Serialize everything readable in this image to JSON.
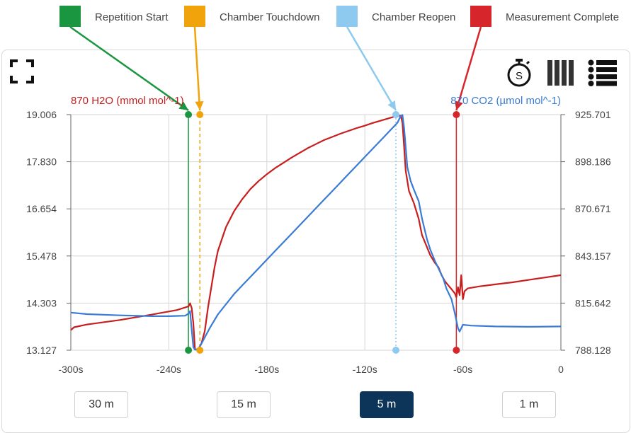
{
  "chart_data": {
    "type": "line",
    "x_unit": "s",
    "xlim": [
      -300,
      0
    ],
    "x_ticks": [
      -300,
      -240,
      -180,
      -120,
      -60,
      0
    ],
    "x_tick_labels": [
      "-300s",
      "-240s",
      "-180s",
      "-120s",
      "-60s",
      "0"
    ],
    "left_axis": {
      "label": "870 H2O (mmol mol^-1)",
      "ylim": [
        13.127,
        19.006
      ],
      "tick_labels": [
        "19.006",
        "17.830",
        "16.654",
        "15.478",
        "14.303",
        "13.127"
      ]
    },
    "right_axis": {
      "label": "870 CO2 (µmol mol^-1)",
      "ylim": [
        788.128,
        925.701
      ],
      "tick_labels": [
        "925.701",
        "898.186",
        "870.671",
        "843.157",
        "815.642",
        "788.128"
      ]
    },
    "grid": true,
    "series": [
      {
        "name": "870 H2O (mmol mol^-1)",
        "axis": "left",
        "color": "#c81e1e",
        "points": [
          [
            -300,
            13.63
          ],
          [
            -298,
            13.7
          ],
          [
            -290,
            13.77
          ],
          [
            -270,
            13.88
          ],
          [
            -250,
            14.02
          ],
          [
            -235,
            14.13
          ],
          [
            -228,
            14.22
          ],
          [
            -227,
            14.3
          ],
          [
            -226,
            14.18
          ],
          [
            -225,
            13.8
          ],
          [
            -224,
            13.15
          ],
          [
            -222,
            13.15
          ],
          [
            -220,
            13.3
          ],
          [
            -218,
            13.6
          ],
          [
            -216,
            14.2
          ],
          [
            -214,
            14.7
          ],
          [
            -212,
            15.2
          ],
          [
            -210,
            15.6
          ],
          [
            -205,
            16.2
          ],
          [
            -200,
            16.6
          ],
          [
            -195,
            16.9
          ],
          [
            -190,
            17.15
          ],
          [
            -185,
            17.35
          ],
          [
            -180,
            17.52
          ],
          [
            -175,
            17.67
          ],
          [
            -170,
            17.8
          ],
          [
            -165,
            17.93
          ],
          [
            -160,
            18.05
          ],
          [
            -155,
            18.17
          ],
          [
            -150,
            18.27
          ],
          [
            -145,
            18.37
          ],
          [
            -140,
            18.45
          ],
          [
            -135,
            18.53
          ],
          [
            -130,
            18.6
          ],
          [
            -125,
            18.67
          ],
          [
            -120,
            18.73
          ],
          [
            -115,
            18.8
          ],
          [
            -110,
            18.86
          ],
          [
            -105,
            18.92
          ],
          [
            -100,
            18.98
          ],
          [
            -98,
            18.98
          ],
          [
            -97,
            18.8
          ],
          [
            -96,
            18.2
          ],
          [
            -95,
            17.6
          ],
          [
            -93,
            17.1
          ],
          [
            -90,
            16.8
          ],
          [
            -87,
            16.4
          ],
          [
            -85,
            16.0
          ],
          [
            -82,
            15.7
          ],
          [
            -80,
            15.5
          ],
          [
            -77,
            15.3
          ],
          [
            -75,
            15.2
          ],
          [
            -73,
            15.0
          ],
          [
            -71,
            14.85
          ],
          [
            -69,
            14.75
          ],
          [
            -67,
            14.65
          ],
          [
            -65,
            14.55
          ],
          [
            -64,
            14.45
          ],
          [
            -63,
            14.7
          ],
          [
            -62,
            14.5
          ],
          [
            -61,
            15.0
          ],
          [
            -60,
            14.4
          ],
          [
            -59,
            14.6
          ],
          [
            -57,
            14.67
          ],
          [
            -50,
            14.72
          ],
          [
            -40,
            14.77
          ],
          [
            -30,
            14.82
          ],
          [
            -20,
            14.88
          ],
          [
            -10,
            14.94
          ],
          [
            0,
            15.0
          ]
        ]
      },
      {
        "name": "870 CO2 (µmol mol^-1)",
        "axis": "right",
        "color": "#3a7bd5",
        "points": [
          [
            -300,
            810.1
          ],
          [
            -290,
            809.2
          ],
          [
            -270,
            808.5
          ],
          [
            -250,
            808.0
          ],
          [
            -240,
            808.0
          ],
          [
            -230,
            808.3
          ],
          [
            -228,
            809.5
          ],
          [
            -227,
            811.0
          ],
          [
            -226,
            800.0
          ],
          [
            -225,
            790.0
          ],
          [
            -224,
            788.4
          ],
          [
            -222,
            788.5
          ],
          [
            -220,
            792.0
          ],
          [
            -215,
            801.0
          ],
          [
            -210,
            809.0
          ],
          [
            -205,
            815.0
          ],
          [
            -200,
            821.0
          ],
          [
            -195,
            826.0
          ],
          [
            -190,
            831.0
          ],
          [
            -185,
            836.0
          ],
          [
            -180,
            841.0
          ],
          [
            -175,
            846.0
          ],
          [
            -170,
            851.0
          ],
          [
            -165,
            856.0
          ],
          [
            -160,
            861.0
          ],
          [
            -155,
            866.0
          ],
          [
            -150,
            871.0
          ],
          [
            -145,
            876.0
          ],
          [
            -140,
            881.0
          ],
          [
            -135,
            886.0
          ],
          [
            -130,
            891.0
          ],
          [
            -125,
            896.0
          ],
          [
            -120,
            901.0
          ],
          [
            -115,
            906.0
          ],
          [
            -110,
            911.0
          ],
          [
            -105,
            916.0
          ],
          [
            -100,
            921.0
          ],
          [
            -98,
            925.0
          ],
          [
            -97,
            925.5
          ],
          [
            -96,
            918.0
          ],
          [
            -94,
            895.0
          ],
          [
            -92,
            887.0
          ],
          [
            -90,
            882.0
          ],
          [
            -87,
            875.0
          ],
          [
            -85,
            865.0
          ],
          [
            -82,
            853.0
          ],
          [
            -80,
            847.0
          ],
          [
            -77,
            840.0
          ],
          [
            -75,
            836.0
          ],
          [
            -72,
            830.0
          ],
          [
            -70,
            824.0
          ],
          [
            -67,
            818.0
          ],
          [
            -65,
            810.0
          ],
          [
            -63,
            801.0
          ],
          [
            -62,
            799.0
          ],
          [
            -60,
            803.0
          ],
          [
            -55,
            802.5
          ],
          [
            -40,
            802.0
          ],
          [
            -20,
            801.8
          ],
          [
            0,
            802.0
          ]
        ]
      }
    ],
    "events": [
      {
        "name": "Repetition Start",
        "x": -228,
        "color": "#1a9641",
        "line": "solid"
      },
      {
        "name": "Chamber Touchdown",
        "x": -221,
        "color": "#f0a30a",
        "line": "dashed"
      },
      {
        "name": "Chamber Reopen",
        "x": -101,
        "color": "#8ec9ef",
        "line": "dotted"
      },
      {
        "name": "Measurement Complete",
        "x": -64,
        "color": "#d7262b",
        "line": "solid"
      }
    ]
  },
  "controls": {
    "fullscreen_icon": "fullscreen-icon",
    "stopwatch_icon": "stopwatch-icon",
    "columns_icon": "columns-icon",
    "list_icon": "list-icon",
    "stopwatch_letter": "S",
    "range_buttons": [
      "30 m",
      "15 m",
      "5 m",
      "1 m"
    ],
    "active_range": "5 m"
  }
}
